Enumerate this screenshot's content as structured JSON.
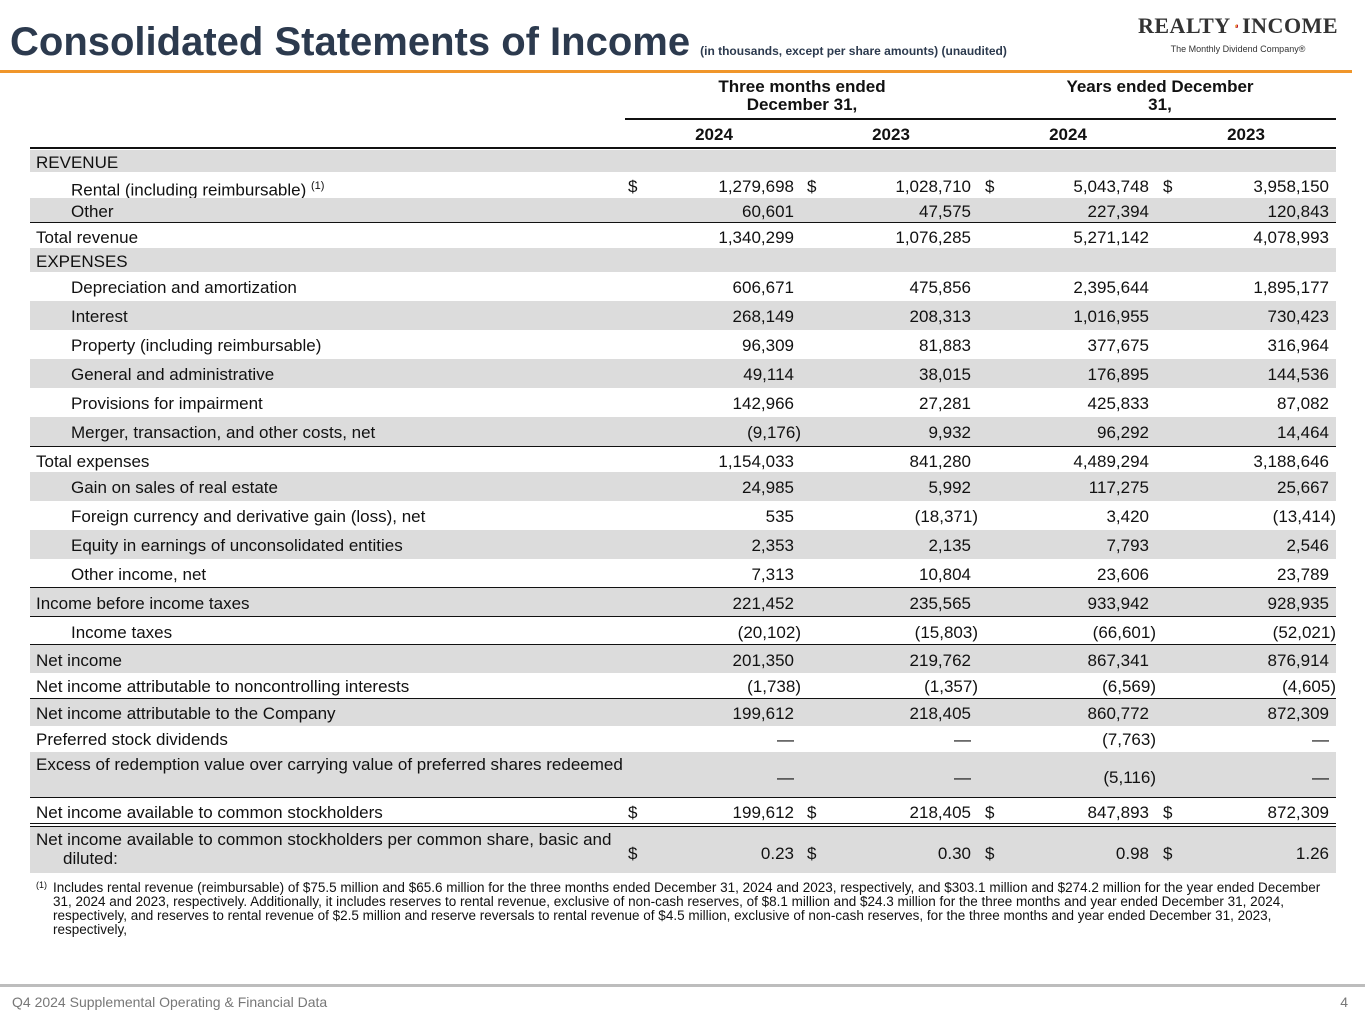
{
  "header": {
    "title": "Consolidated Statements of Income",
    "subtitle": "(in thousands, except per share amounts) (unaudited)"
  },
  "logo": {
    "left": "REALTY",
    "right": "INCOME",
    "tagline": "The Monthly Dividend Company®"
  },
  "columns": {
    "group1": "Three months ended December 31,",
    "group2": "Years ended December 31,",
    "years": [
      "2024",
      "2023",
      "2024",
      "2023"
    ]
  },
  "rows": [
    {
      "label": "REVENUE",
      "type": "section",
      "shade": true,
      "values": [
        "",
        "",
        "",
        ""
      ]
    },
    {
      "label": "Rental (including reimbursable)",
      "sup": "(1)",
      "indent": true,
      "dollar": true,
      "values": [
        "1,279,698",
        "1,028,710",
        "5,043,748",
        "3,958,150"
      ]
    },
    {
      "label": "Other",
      "indent": true,
      "shade": true,
      "values": [
        "60,601",
        "47,575",
        "227,394",
        "120,843"
      ]
    },
    {
      "label": "Total revenue",
      "border": true,
      "values": [
        "1,340,299",
        "1,076,285",
        "5,271,142",
        "4,078,993"
      ]
    },
    {
      "label": "EXPENSES",
      "shade": true,
      "values": [
        "",
        "",
        "",
        ""
      ]
    },
    {
      "label": "Depreciation and amortization",
      "indent": true,
      "values": [
        "606,671",
        "475,856",
        "2,395,644",
        "1,895,177"
      ]
    },
    {
      "label": "Interest",
      "indent": true,
      "shade": true,
      "values": [
        "268,149",
        "208,313",
        "1,016,955",
        "730,423"
      ]
    },
    {
      "label": "Property (including reimbursable)",
      "indent": true,
      "values": [
        "96,309",
        "81,883",
        "377,675",
        "316,964"
      ]
    },
    {
      "label": "General and administrative",
      "indent": true,
      "shade": true,
      "values": [
        "49,114",
        "38,015",
        "176,895",
        "144,536"
      ]
    },
    {
      "label": "Provisions for impairment",
      "indent": true,
      "values": [
        "142,966",
        "27,281",
        "425,833",
        "87,082"
      ]
    },
    {
      "label": "Merger, transaction, and other costs, net",
      "indent": true,
      "shade": true,
      "values": [
        "(9,176)",
        "9,932",
        "96,292",
        "14,464"
      ]
    },
    {
      "label": "Total expenses",
      "border": true,
      "values": [
        "1,154,033",
        "841,280",
        "4,489,294",
        "3,188,646"
      ]
    },
    {
      "label": "Gain on sales of real estate",
      "indent": true,
      "shade": true,
      "values": [
        "24,985",
        "5,992",
        "117,275",
        "25,667"
      ]
    },
    {
      "label": "Foreign currency and derivative gain (loss), net",
      "indent": true,
      "values": [
        "535",
        "(18,371)",
        "3,420",
        "(13,414)"
      ]
    },
    {
      "label": "Equity in earnings of unconsolidated entities",
      "indent": true,
      "shade": true,
      "values": [
        "2,353",
        "2,135",
        "7,793",
        "2,546"
      ]
    },
    {
      "label": "Other income, net",
      "indent": true,
      "values": [
        "7,313",
        "10,804",
        "23,606",
        "23,789"
      ]
    },
    {
      "label": "Income before income taxes",
      "border": true,
      "shade": true,
      "values": [
        "221,452",
        "235,565",
        "933,942",
        "928,935"
      ]
    },
    {
      "label": "Income taxes",
      "indent": true,
      "border": true,
      "values": [
        "(20,102)",
        "(15,803)",
        "(66,601)",
        "(52,021)"
      ]
    },
    {
      "label": "Net income",
      "border": true,
      "shade": true,
      "values": [
        "201,350",
        "219,762",
        "867,341",
        "876,914"
      ]
    },
    {
      "label": "Net income attributable to noncontrolling interests",
      "values": [
        "(1,738)",
        "(1,357)",
        "(6,569)",
        "(4,605)"
      ]
    },
    {
      "label": "Net income attributable to the Company",
      "border": true,
      "shade": true,
      "values": [
        "199,612",
        "218,405",
        "860,772",
        "872,309"
      ]
    },
    {
      "label": "Preferred stock dividends",
      "values": [
        "—",
        "—",
        "(7,763)",
        "—"
      ]
    },
    {
      "label": "Excess of redemption value over carrying value of preferred shares redeemed",
      "shade": true,
      "two": true,
      "values": [
        "—",
        "—",
        "(5,116)",
        "—"
      ]
    },
    {
      "label": "Net income available to common stockholders",
      "border": true,
      "dollar": true,
      "values": [
        "199,612",
        "218,405",
        "847,893",
        "872,309"
      ]
    },
    {
      "label": "Net income available to common stockholders per common share, basic and diluted:",
      "shade": true,
      "two": true,
      "dollar": true,
      "values": [
        "0.23",
        "0.30",
        "0.98",
        "1.26"
      ]
    }
  ],
  "dollar_sign": "$",
  "footnote": {
    "marker": "(1)",
    "text": "Includes rental revenue (reimbursable) of $75.5 million and $65.6 million for the three months ended December 31, 2024 and 2023, respectively, and $303.1 million and $274.2 million for the year ended December 31, 2024 and 2023, respectively. Additionally, it includes reserves to rental revenue, exclusive of non-cash reserves, of $8.1 million and $24.3 million for the three months and year ended December 31, 2024, respectively, and reserves to rental revenue of $2.5 million and reserve reversals to rental revenue of $4.5 million, exclusive of non-cash reserves, for the three months and year ended December 31, 2023, respectively,"
  },
  "footer": {
    "left": "Q4 2024 Supplemental Operating & Financial Data",
    "page": "4"
  },
  "colors": {
    "title": "#2c3a4e",
    "accent": "#f0962a",
    "shade": "#dcdcdc"
  }
}
